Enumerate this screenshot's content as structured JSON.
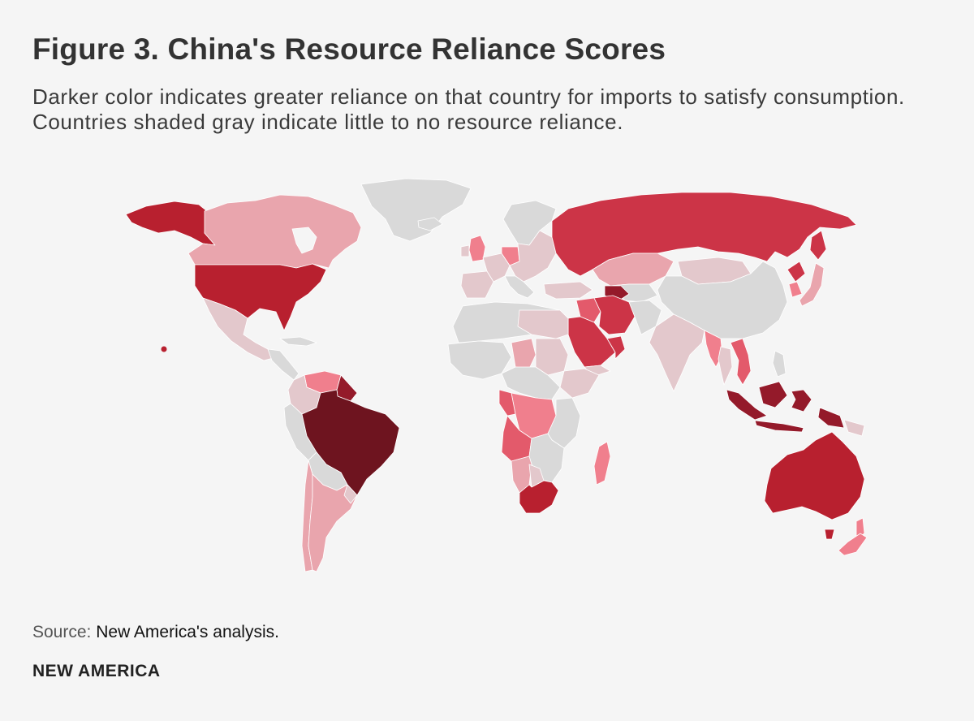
{
  "title": "Figure 3. China's Resource Reliance Scores",
  "subtitle": "Darker color indicates greater reliance on that country for imports to satisfy consumption. Countries shaded gray indicate little to no resource reliance.",
  "source_label": "Source:",
  "source_text": "New America's analysis.",
  "brand": "NEW AMERICA",
  "colors": {
    "background": "#f5f5f5",
    "no_reliance": "#d9d9d9",
    "very_low": "#e3c8cc",
    "low": "#e9a5ad",
    "medium_low": "#f07f8d",
    "medium": "#e35a6b",
    "medium_high": "#cc3447",
    "high": "#b8202f",
    "very_high": "#941a2a",
    "highest": "#6e141f"
  },
  "countries": [
    {
      "name": "Brazil",
      "level": "highest"
    },
    {
      "name": "Australia",
      "level": "high"
    },
    {
      "name": "Indonesia",
      "level": "very_high"
    },
    {
      "name": "Russia",
      "level": "medium_high"
    },
    {
      "name": "United States",
      "level": "high"
    },
    {
      "name": "Saudi Arabia",
      "level": "medium_high"
    },
    {
      "name": "Iran",
      "level": "medium_high"
    },
    {
      "name": "Iraq",
      "level": "medium"
    },
    {
      "name": "Turkmenistan",
      "level": "very_high"
    },
    {
      "name": "South Africa",
      "level": "high"
    },
    {
      "name": "Angola",
      "level": "medium"
    },
    {
      "name": "Oman",
      "level": "medium_high"
    },
    {
      "name": "Canada",
      "level": "low"
    },
    {
      "name": "Kazakhstan",
      "level": "low"
    },
    {
      "name": "Argentina",
      "level": "low"
    },
    {
      "name": "Chile",
      "level": "low"
    },
    {
      "name": "Venezuela",
      "level": "medium_low"
    },
    {
      "name": "Congo (DRC)",
      "level": "medium_low"
    },
    {
      "name": "Madagascar",
      "level": "medium_low"
    },
    {
      "name": "New Zealand",
      "level": "medium_low"
    },
    {
      "name": "Myanmar",
      "level": "medium_low"
    },
    {
      "name": "Vietnam",
      "level": "medium"
    },
    {
      "name": "United Kingdom",
      "level": "medium_low"
    },
    {
      "name": "Germany",
      "level": "medium_low"
    },
    {
      "name": "Japan",
      "level": "low"
    },
    {
      "name": "South Korea",
      "level": "medium_low"
    },
    {
      "name": "North Korea",
      "level": "medium_high"
    },
    {
      "name": "Mongolia",
      "level": "very_low"
    },
    {
      "name": "China",
      "level": "no_reliance"
    },
    {
      "name": "India",
      "level": "very_low"
    },
    {
      "name": "Greenland",
      "level": "no_reliance"
    }
  ]
}
